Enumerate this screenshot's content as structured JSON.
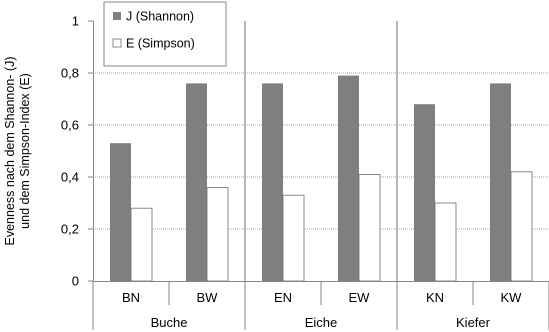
{
  "chart_data": {
    "type": "bar",
    "groups": [
      {
        "name": "Buche",
        "categories": [
          "BN",
          "BW"
        ]
      },
      {
        "name": "Eiche",
        "categories": [
          "EN",
          "EW"
        ]
      },
      {
        "name": "Kiefer",
        "categories": [
          "KN",
          "KW"
        ]
      }
    ],
    "categories": [
      "BN",
      "BW",
      "EN",
      "EW",
      "KN",
      "KW"
    ],
    "series": [
      {
        "name": "J (Shannon)",
        "color": "#7f7f7f",
        "values": [
          0.53,
          0.76,
          0.76,
          0.79,
          0.68,
          0.76
        ]
      },
      {
        "name": "E (Simpson)",
        "color": "#ffffff",
        "values": [
          0.28,
          0.36,
          0.33,
          0.41,
          0.3,
          0.42
        ]
      }
    ],
    "ylabel_lines": [
      "Evenness nach dem Shannon- (J)",
      "und dem Simpson-Index (E)"
    ],
    "ylim": [
      0,
      1
    ],
    "yticks": [
      {
        "value": 0,
        "label": "0"
      },
      {
        "value": 0.2,
        "label": "0,2"
      },
      {
        "value": 0.4,
        "label": "0,4"
      },
      {
        "value": 0.6,
        "label": "0,6"
      },
      {
        "value": 0.8,
        "label": "0,8"
      },
      {
        "value": 1,
        "label": "1"
      }
    ],
    "grid": true,
    "legend_position": "top-left"
  }
}
